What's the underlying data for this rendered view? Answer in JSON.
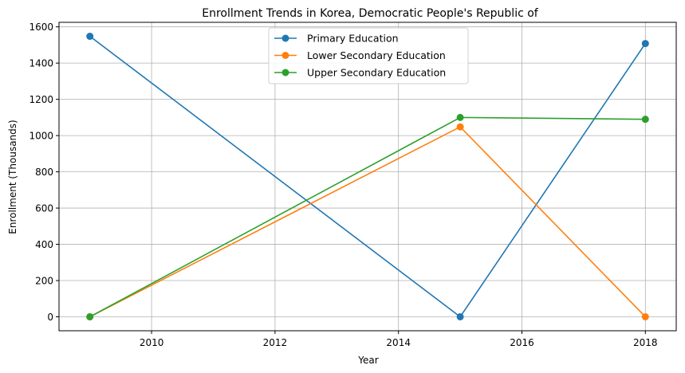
{
  "chart_data": {
    "type": "line",
    "title": "Enrollment Trends in Korea, Democratic People's Republic of",
    "xlabel": "Year",
    "ylabel": "Enrollment (Thousands)",
    "x": [
      2009,
      2015,
      2018
    ],
    "xlim": [
      2008.5,
      2018.5
    ],
    "ylim": [
      -77,
      1625
    ],
    "xticks": [
      2010,
      2012,
      2014,
      2016,
      2018
    ],
    "yticks": [
      0,
      200,
      400,
      600,
      800,
      1000,
      1200,
      1400,
      1600
    ],
    "grid": true,
    "legend_position": "top-center",
    "series": [
      {
        "name": "Primary Education",
        "color": "#1f77b4",
        "values": [
          1548,
          0,
          1508
        ]
      },
      {
        "name": "Lower Secondary Education",
        "color": "#ff7f0e",
        "values": [
          0,
          1048,
          0
        ]
      },
      {
        "name": "Upper Secondary Education",
        "color": "#2ca02c",
        "values": [
          0,
          1100,
          1090
        ]
      }
    ]
  }
}
